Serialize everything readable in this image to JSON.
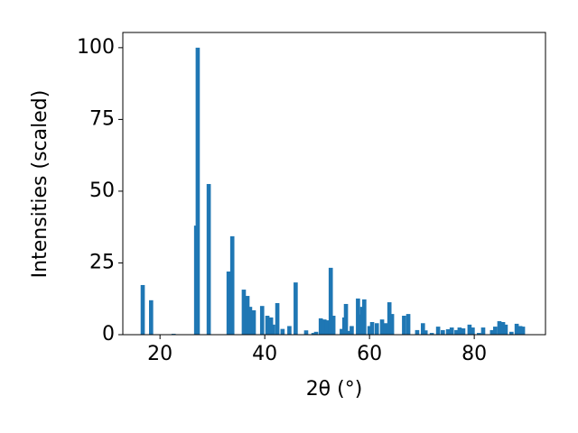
{
  "chart_data": {
    "type": "bar",
    "x_label": "2θ (°)",
    "y_label": "Intensities (scaled)",
    "x": [
      16.7,
      18.3,
      22.6,
      26.9,
      27.2,
      29.3,
      33.1,
      33.8,
      36.0,
      36.7,
      37.2,
      37.9,
      39.5,
      40.5,
      41.2,
      41.6,
      42.4,
      43.4,
      44.7,
      45.9,
      47.9,
      49.3,
      49.8,
      50.7,
      51.4,
      51.9,
      52.6,
      53.1,
      54.7,
      55.2,
      55.5,
      56.2,
      56.6,
      57.8,
      58.3,
      58.6,
      59.0,
      60.0,
      60.5,
      61.4,
      62.4,
      63.1,
      63.8,
      64.3,
      66.6,
      67.4,
      69.1,
      70.2,
      70.7,
      71.9,
      73.1,
      74.0,
      75.0,
      75.7,
      76.6,
      77.2,
      77.9,
      79.1,
      79.7,
      80.9,
      81.7,
      83.4,
      84.0,
      84.8,
      85.5,
      86.0,
      87.1,
      88.1,
      88.8,
      89.3
    ],
    "values": [
      17.3,
      12,
      0.3,
      38,
      100,
      52.5,
      22,
      34.3,
      15.7,
      13.5,
      9.7,
      8.5,
      10,
      6.6,
      6,
      3.5,
      11,
      2,
      3,
      18.2,
      1.5,
      0.6,
      1,
      5.7,
      5.3,
      5,
      23.3,
      6.6,
      2,
      6,
      10.7,
      1.3,
      3,
      12.6,
      7,
      9.7,
      12.3,
      3,
      4.4,
      4,
      5.3,
      4,
      11.3,
      7.2,
      6.6,
      7.2,
      1.6,
      4,
      1.5,
      0.6,
      2.8,
      1.6,
      1.9,
      2.5,
      1.6,
      2.5,
      2.2,
      3.5,
      2.5,
      0.6,
      2.5,
      1.6,
      2.8,
      4.7,
      4.4,
      3.5,
      1,
      3.8,
      3,
      2.8
    ],
    "color": "#1f77b4",
    "xlim": [
      12.9,
      93.6
    ],
    "xticks": [
      20,
      40,
      60,
      80
    ],
    "ylim": [
      0,
      105.3
    ],
    "yticks": [
      0,
      25,
      50,
      75,
      100
    ]
  }
}
